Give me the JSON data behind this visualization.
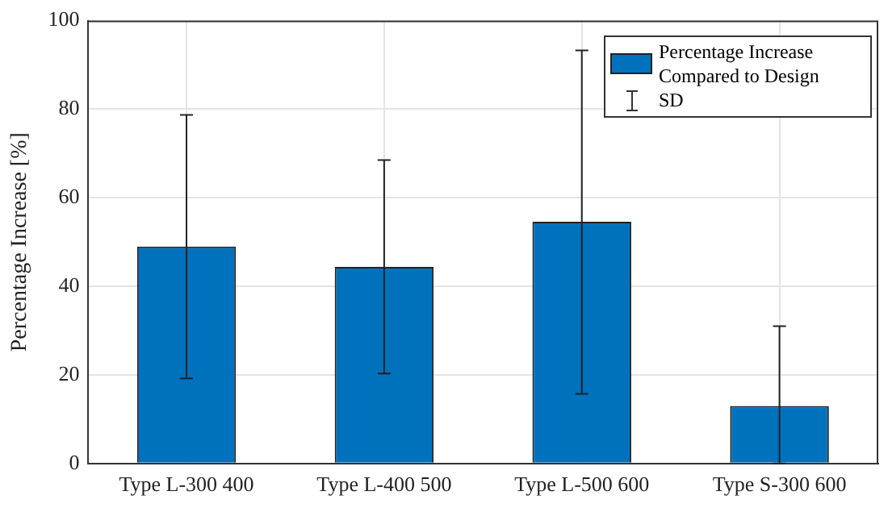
{
  "chart_data": {
    "type": "bar",
    "ylabel": "Percentage Increase [%]",
    "categories": [
      "Type L-300 400",
      "Type L-400 500",
      "Type L-500 600",
      "Type S-300 600"
    ],
    "series": [
      {
        "name": "Percentage Increase Compared to Design",
        "color": "#0072bd",
        "values": [
          49.0,
          44.4,
          54.6,
          13.0
        ],
        "errors": [
          [
            19.2,
            78.7
          ],
          [
            20.3,
            68.5
          ],
          [
            15.7,
            93.3
          ],
          [
            0,
            31.0
          ]
        ]
      }
    ],
    "ylim": [
      0,
      100
    ],
    "yticks": [
      0,
      20,
      40,
      60,
      80,
      100
    ],
    "grid": true,
    "legend": "top right",
    "annotations": [
      "SD"
    ]
  }
}
